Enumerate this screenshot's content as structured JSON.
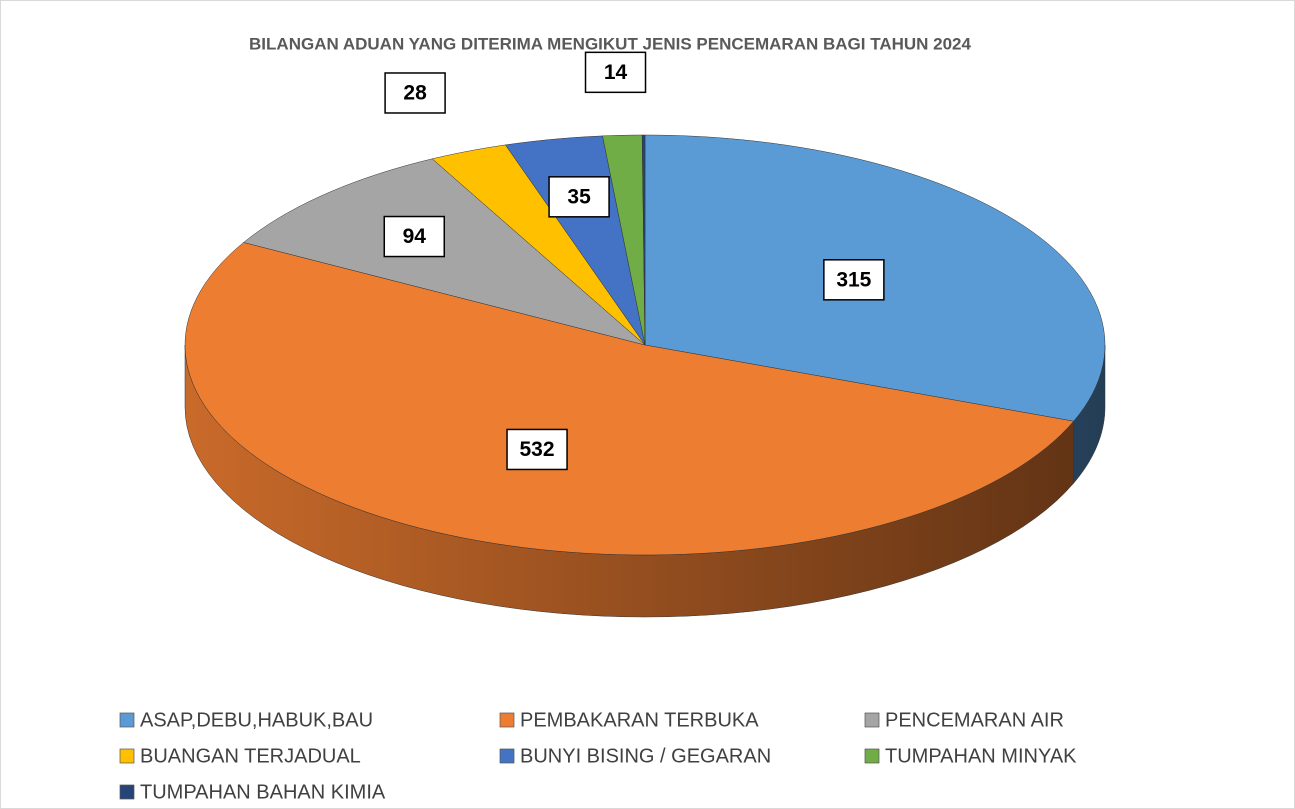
{
  "chart_data": {
    "type": "pie3d",
    "title": "BILANGAN ADUAN YANG DITERIMA MENGIKUT JENIS PENCEMARAN BAGI TAHUN 2024",
    "categories": [
      "ASAP,DEBU,HABUK,BAU",
      "PEMBAKARAN TERBUKA",
      "PENCEMARAN  AIR",
      "BUANGAN TERJADUAL",
      "BUNYI BISING / GEGARAN",
      "TUMPAHAN MINYAK",
      "TUMPAHAN BAHAN KIMIA"
    ],
    "values": [
      315,
      532,
      94,
      28,
      35,
      14,
      1
    ],
    "value_labels": [
      "315",
      "532",
      "94",
      "28",
      "35",
      "14",
      null
    ],
    "colors": [
      "#5b9bd5",
      "#ed7d31",
      "#a5a5a5",
      "#ffc000",
      "#4472c4",
      "#70ad47",
      "#264478"
    ],
    "legend": "bottom"
  }
}
